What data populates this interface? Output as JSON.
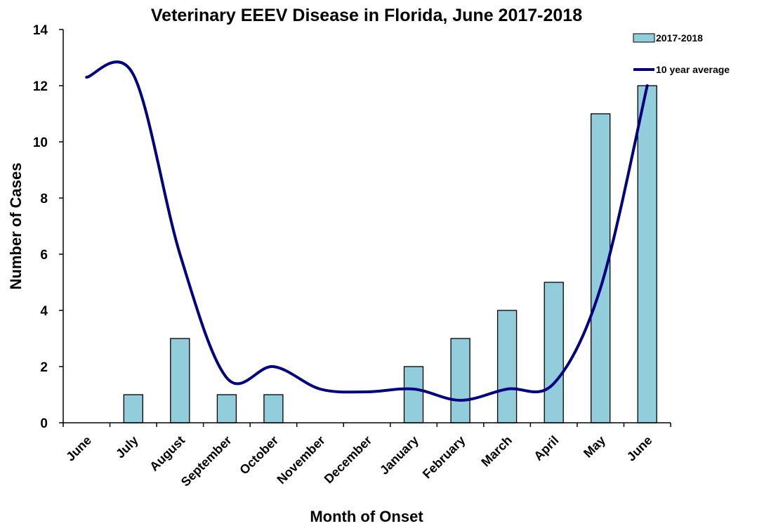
{
  "chart_data": {
    "type": "bar",
    "title": "Veterinary EEEV Disease in Florida, June 2017-2018",
    "xlabel": "Month of Onset",
    "ylabel": "Number of Cases",
    "ylim": [
      0,
      14
    ],
    "yticks": [
      0,
      2,
      4,
      6,
      8,
      10,
      12,
      14
    ],
    "categories": [
      "June",
      "July",
      "August",
      "September",
      "October",
      "November",
      "December",
      "January",
      "February",
      "March",
      "April",
      "May",
      "June"
    ],
    "series": [
      {
        "name": "2017-2018",
        "type": "bar",
        "color": "#92CDDC",
        "values": [
          0,
          1,
          3,
          1,
          1,
          0,
          0,
          2,
          3,
          4,
          5,
          11,
          12
        ]
      },
      {
        "name": "10 year average",
        "type": "line",
        "color": "#000080",
        "values": [
          12.3,
          12.4,
          6.0,
          1.6,
          2.0,
          1.2,
          1.1,
          1.2,
          0.8,
          1.2,
          1.4,
          4.8,
          12.0
        ]
      }
    ],
    "grid": false,
    "legend": "top-right"
  }
}
